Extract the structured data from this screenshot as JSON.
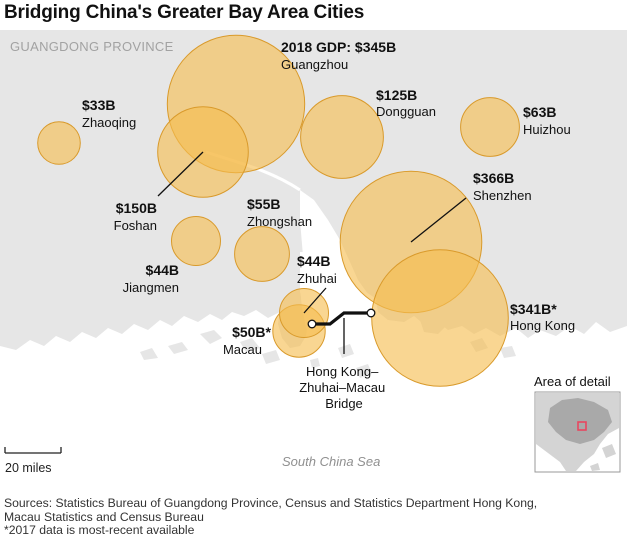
{
  "title": "Bridging China's Greater Bay Area Cities",
  "region_label": "GUANGDONG PROVINCE",
  "sea_label": "South China Sea",
  "scale_label": "20 miles",
  "inset_title": "Area of detail",
  "bridge_label": [
    "Hong Kong–",
    "Zhuhai–Macau",
    "Bridge"
  ],
  "gdp_unit": "USD billions",
  "cities": [
    {
      "name": "Guangzhou",
      "value_label": "2018 GDP: $345B",
      "gdp": 345
    },
    {
      "name": "Dongguan",
      "value_label": "$125B",
      "gdp": 125
    },
    {
      "name": "Huizhou",
      "value_label": "$63B",
      "gdp": 63
    },
    {
      "name": "Zhaoqing",
      "value_label": "$33B",
      "gdp": 33
    },
    {
      "name": "Foshan",
      "value_label": "$150B",
      "gdp": 150
    },
    {
      "name": "Zhongshan",
      "value_label": "$55B",
      "gdp": 55
    },
    {
      "name": "Shenzhen",
      "value_label": "$366B",
      "gdp": 366
    },
    {
      "name": "Jiangmen",
      "value_label": "$44B",
      "gdp": 44
    },
    {
      "name": "Zhuhai",
      "value_label": "$44B",
      "gdp": 44
    },
    {
      "name": "Macau",
      "value_label": "$50B*",
      "gdp": 50
    },
    {
      "name": "Hong Kong",
      "value_label": "$341B*",
      "gdp": 341
    }
  ],
  "colors": {
    "land": "#e6e6e6",
    "water": "#ffffff",
    "bubble_fill": "#f6bd4f",
    "bubble_stroke": "#d99a2b",
    "inset_highlight": "#e8475f"
  },
  "sources": [
    "Sources: Statistics Bureau of Guangdong Province, Census and Statistics Department Hong Kong,",
    "Macau Statistics and Census Bureau",
    "*2017 data is most-recent available"
  ]
}
